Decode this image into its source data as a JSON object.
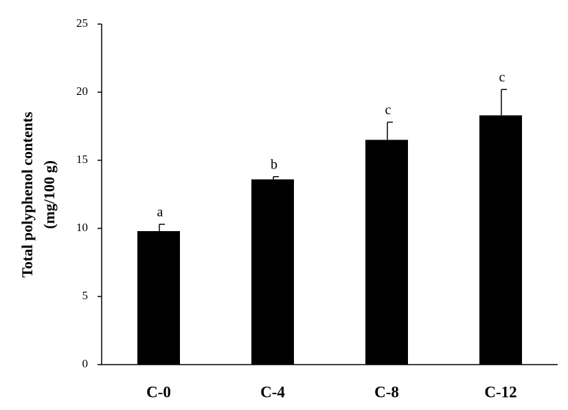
{
  "chart_data": {
    "type": "bar",
    "ylabel": [
      "Total polyphenol contents",
      "(mg/100 g)"
    ],
    "categories": [
      "C-0",
      "C-4",
      "C-8",
      "C-12"
    ],
    "values": [
      9.8,
      13.6,
      16.5,
      18.3
    ],
    "errors": [
      0.5,
      0.2,
      1.3,
      1.9
    ],
    "annotations": [
      "a",
      "b",
      "c",
      "c"
    ],
    "color": "#000000",
    "ylim": [
      0,
      25
    ],
    "yticks": [
      0,
      5,
      10,
      15,
      20,
      25
    ],
    "grid": false
  }
}
